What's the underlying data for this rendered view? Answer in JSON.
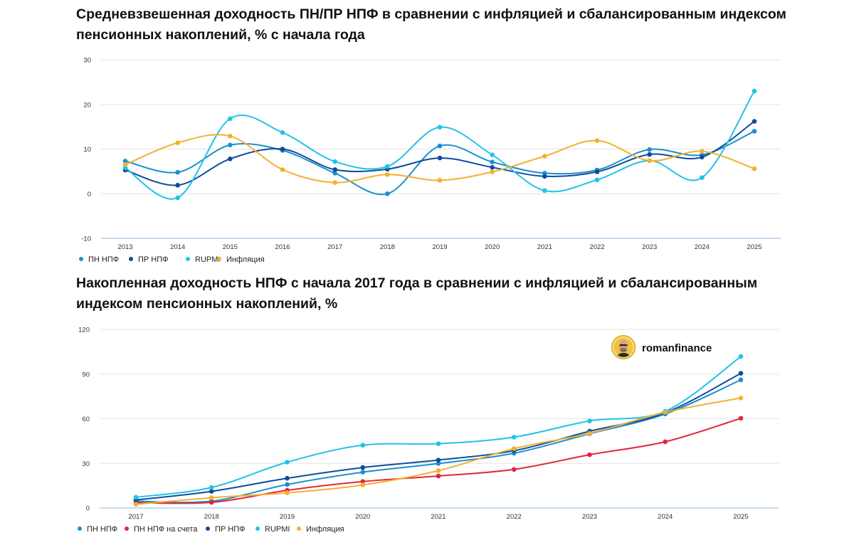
{
  "chart_data": [
    {
      "type": "line",
      "title": "Средневзвешенная доходность ПН/ПР НПФ в сравнении с инфляцией и сбалансированным индексом пенсионных накоплений, % с начала года",
      "xlabel": "",
      "ylabel": "",
      "ylim": [
        -10,
        30
      ],
      "yticks": [
        -10,
        0,
        10,
        20,
        30
      ],
      "grid": true,
      "legend": "bottom-left",
      "categories": [
        "2013",
        "2014",
        "2015",
        "2016",
        "2017",
        "2018",
        "2019",
        "2020",
        "2021",
        "2022",
        "2023",
        "2024",
        "2025"
      ],
      "series": [
        {
          "name": "ПН НПФ",
          "color": "#1b8fd1",
          "values": [
            7.3,
            4.8,
            10.9,
            9.7,
            4.6,
            0.0,
            10.7,
            7.1,
            4.6,
            5.3,
            9.9,
            8.7,
            14.0
          ]
        },
        {
          "name": "ПР НПФ",
          "color": "#0f4c9c",
          "values": [
            5.3,
            1.9,
            7.8,
            10.0,
            5.4,
            5.5,
            8.0,
            5.9,
            3.9,
            4.9,
            8.8,
            8.2,
            16.2
          ]
        },
        {
          "name": "RUPMI",
          "color": "#21c3e8",
          "values": [
            5.8,
            -0.9,
            16.8,
            13.7,
            7.2,
            6.1,
            14.9,
            8.7,
            0.7,
            3.1,
            7.4,
            3.6,
            23.0
          ]
        },
        {
          "name": "Инфляция",
          "color": "#f4b02e",
          "values": [
            6.5,
            11.4,
            12.9,
            5.4,
            2.5,
            4.3,
            3.0,
            4.9,
            8.4,
            11.9,
            7.4,
            9.5,
            5.6
          ]
        }
      ]
    },
    {
      "type": "line",
      "title": "Накопленная доходность НПФ с начала 2017 года в сравнении с инфляцией и сбалансированным индексом пенсионных накоплений, %",
      "xlabel": "",
      "ylabel": "",
      "ylim": [
        0,
        120
      ],
      "yticks": [
        0,
        30,
        60,
        90,
        120
      ],
      "grid": true,
      "legend": "bottom-left",
      "categories": [
        "2017",
        "2018",
        "2019",
        "2020",
        "2021",
        "2022",
        "2023",
        "2024",
        "2025"
      ],
      "series": [
        {
          "name": "ПН НПФ",
          "color": "#1b8fd1",
          "values": [
            4.6,
            4.6,
            15.8,
            24.1,
            29.9,
            36.8,
            49.9,
            63.2,
            86.1
          ]
        },
        {
          "name": "ПН НПФ на счета",
          "color": "#e3263a",
          "values": [
            3.6,
            3.8,
            11.9,
            17.8,
            21.5,
            25.9,
            35.8,
            44.5,
            60.3
          ]
        },
        {
          "name": "ПР НПФ",
          "color": "#0f4c9c",
          "values": [
            5.4,
            11.2,
            20.0,
            27.2,
            32.2,
            38.5,
            51.6,
            64.0,
            90.5
          ]
        },
        {
          "name": "RUPMI",
          "color": "#21c3e8",
          "values": [
            7.2,
            13.8,
            30.8,
            42.2,
            43.2,
            47.6,
            58.5,
            65.0,
            101.8
          ]
        },
        {
          "name": "Инфляция",
          "color": "#f4b02e",
          "values": [
            2.5,
            6.9,
            10.2,
            15.5,
            25.1,
            39.9,
            50.2,
            64.3,
            73.9
          ]
        }
      ]
    }
  ],
  "watermark": {
    "text": "romanfinance",
    "icon": "avatar-icon"
  }
}
